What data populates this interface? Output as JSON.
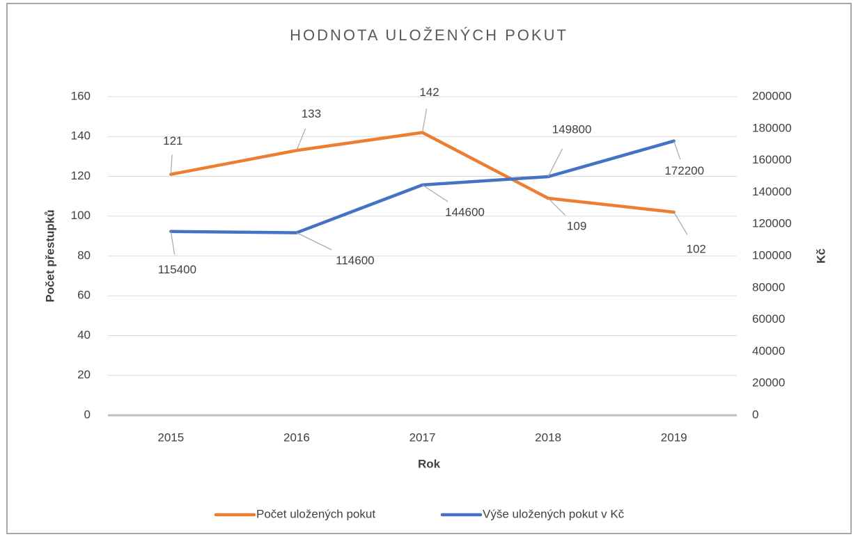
{
  "chart_data": {
    "type": "line",
    "title": "HODNOTA ULOŽENÝCH POKUT",
    "x_label": "Rok",
    "y_label": "Počet přestupků",
    "y2_label": "Kč",
    "categories": [
      "2015",
      "2016",
      "2017",
      "2018",
      "2019"
    ],
    "series": [
      {
        "name": "Počet uložených pokut",
        "color": "#ed7d31",
        "values": [
          121,
          133,
          142,
          109,
          102
        ]
      },
      {
        "name": "Výše uložených pokut v Kč",
        "color": "#4472c4",
        "axis": "y2",
        "values": [
          115400,
          114600,
          144600,
          149800,
          172200
        ]
      }
    ],
    "ylim": [
      0,
      160
    ],
    "yticks": [
      0,
      20,
      40,
      60,
      80,
      100,
      120,
      140,
      160
    ],
    "y2lim": [
      0,
      200000
    ],
    "y2ticks": [
      0,
      20000,
      40000,
      60000,
      80000,
      100000,
      120000,
      140000,
      160000,
      180000,
      200000
    ],
    "grid": true,
    "legend": "bottom"
  }
}
